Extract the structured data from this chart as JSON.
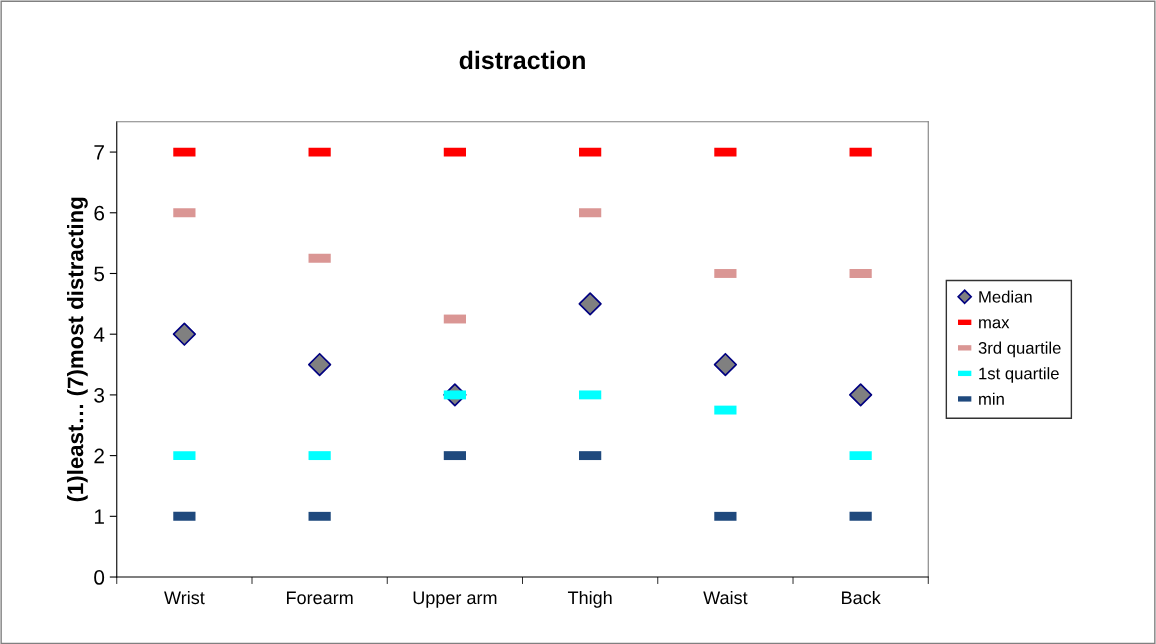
{
  "chart_data": {
    "type": "scatter",
    "title": "distraction",
    "ylabel": "(1)least… (7)most distracting",
    "categories": [
      "Wrist",
      "Forearm",
      "Upper arm",
      "Thigh",
      "Waist",
      "Back"
    ],
    "series": [
      {
        "name": "Median",
        "color": "#808080",
        "marker": "diamond",
        "values": [
          4,
          3.5,
          3,
          4.5,
          3.5,
          3
        ]
      },
      {
        "name": "max",
        "color": "#ff0000",
        "marker": "square",
        "values": [
          7,
          7,
          7,
          7,
          7,
          7
        ]
      },
      {
        "name": "3rd quartile",
        "color": "#da9694",
        "marker": "square",
        "values": [
          6,
          5.25,
          4.25,
          6,
          5,
          5
        ]
      },
      {
        "name": "1st quartile",
        "color": "#00ffff",
        "marker": "square",
        "values": [
          2,
          2,
          3,
          3,
          2.75,
          2
        ]
      },
      {
        "name": "min",
        "color": "#1f497d",
        "marker": "square",
        "values": [
          1,
          1,
          2,
          2,
          1,
          1
        ]
      }
    ],
    "ylim": [
      0,
      7.5
    ],
    "yticks": [
      0,
      1,
      2,
      3,
      4,
      5,
      6,
      7
    ],
    "grid": false,
    "legend": "right"
  }
}
